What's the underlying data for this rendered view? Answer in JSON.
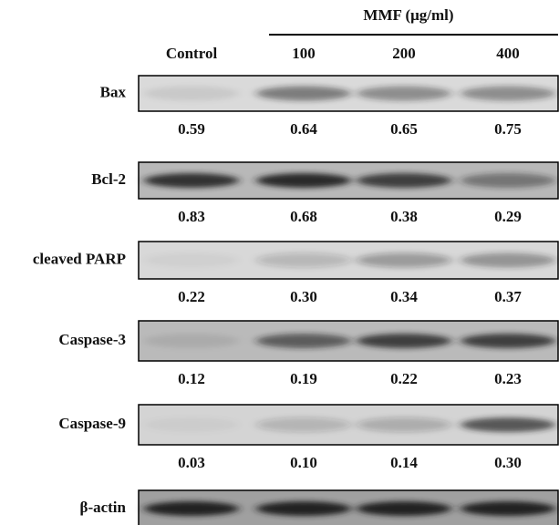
{
  "header": {
    "treatment": "MMF (μg/ml)",
    "columns": [
      "Control",
      "100",
      "200",
      "400"
    ]
  },
  "blots": [
    {
      "label": "Bax",
      "values": [
        "0.59",
        "0.64",
        "0.65",
        "0.75"
      ]
    },
    {
      "label": "Bcl-2",
      "values": [
        "0.83",
        "0.68",
        "0.38",
        "0.29"
      ]
    },
    {
      "label": "cleaved PARP",
      "values": [
        "0.22",
        "0.30",
        "0.34",
        "0.37"
      ]
    },
    {
      "label": "Caspase-3",
      "values": [
        "0.12",
        "0.19",
        "0.22",
        "0.23"
      ]
    },
    {
      "label": "Caspase-9",
      "values": [
        "0.03",
        "0.10",
        "0.14",
        "0.30"
      ]
    },
    {
      "label": "β-actin"
    }
  ]
}
